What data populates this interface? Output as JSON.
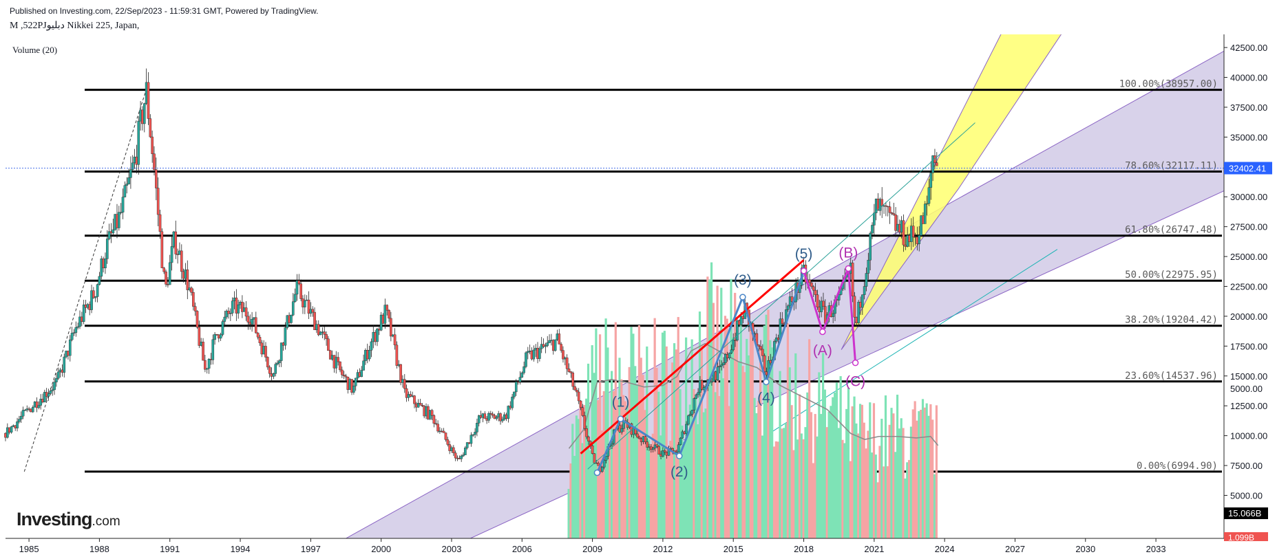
{
  "header": {
    "published": "Published on Investing.com, 22/Sep/2023 - 11:59:31 GMT, Powered by TradingView.",
    "symbol_line": "M ,522PJدبليو Nikkei 225, Japan,",
    "volume_label": "Volume (20)"
  },
  "logo": {
    "brand": "Investing",
    "domain": ".com"
  },
  "colors": {
    "fib_line": "#000000",
    "up_candle": "#26a69a",
    "down_candle": "#ef5350",
    "channel_fill": "#cbc3e3",
    "channel_border": "#8a63c4",
    "yellow_channel": "#ffff70",
    "impulse_wave": "#4a86c8",
    "corrective_wave": "#cc33cc",
    "trend_line": "#ff0000",
    "price_tag": "#2962ff",
    "volume_up": "#7ee3b6",
    "volume_down": "#f6a4a4",
    "volume_ma": "#8c8c8c"
  },
  "chart_data": {
    "type": "candlestick",
    "title": "Nikkei 225, Japan",
    "interval": "M",
    "x_axis": {
      "ticks": [
        "1985",
        "1988",
        "1991",
        "1994",
        "1997",
        "2000",
        "2003",
        "2006",
        "2009",
        "2012",
        "2015",
        "2018",
        "2021",
        "2024",
        "2027",
        "2030",
        "2033"
      ],
      "range": [
        1984.0,
        2035.9
      ]
    },
    "y_axis": {
      "ticks": [
        "42500.00",
        "40000.00",
        "37500.00",
        "35000.00",
        "32500.00",
        "30000.00",
        "27500.00",
        "25000.00",
        "22500.00",
        "20000.00",
        "17500.00",
        "15000.00",
        "12500.00",
        "10000.00",
        "7500.00",
        "5000.00"
      ],
      "range": [
        1400,
        43600
      ]
    },
    "last_price": "32402.41",
    "fib_levels": [
      {
        "pct": "100.00%",
        "value": 38957.0,
        "label": "100.00%(38957.00)"
      },
      {
        "pct": "78.60%",
        "value": 32117.11,
        "label": "78.60%(32117.11)"
      },
      {
        "pct": "61.80%",
        "value": 26747.48,
        "label": "61.80%(26747.48)"
      },
      {
        "pct": "50.00%",
        "value": 22975.95,
        "label": "50.00%(22975.95)"
      },
      {
        "pct": "38.20%",
        "value": 19204.42,
        "label": "38.20%(19204.42)"
      },
      {
        "pct": "23.60%",
        "value": 14537.96,
        "label": "23.60%(14537.96)"
      },
      {
        "pct": "0.00%",
        "value": 6994.9,
        "label": "0.00%(6994.90)"
      }
    ],
    "price_path": [
      [
        1984.0,
        10200
      ],
      [
        1985.2,
        12600
      ],
      [
        1986.2,
        14500
      ],
      [
        1987.0,
        19000
      ],
      [
        1987.8,
        22000
      ],
      [
        1988.3,
        25800
      ],
      [
        1988.9,
        28500
      ],
      [
        1989.5,
        33000
      ],
      [
        1989.99,
        38900
      ],
      [
        1990.3,
        33000
      ],
      [
        1990.8,
        22000
      ],
      [
        1991.2,
        26500
      ],
      [
        1991.8,
        22500
      ],
      [
        1992.5,
        15500
      ],
      [
        1993.0,
        18500
      ],
      [
        1993.7,
        20800
      ],
      [
        1994.4,
        20200
      ],
      [
        1995.4,
        15000
      ],
      [
        1996.4,
        22300
      ],
      [
        1997.2,
        19500
      ],
      [
        1998.2,
        15500
      ],
      [
        1998.8,
        13800
      ],
      [
        1999.5,
        17500
      ],
      [
        2000.2,
        20400
      ],
      [
        2001.0,
        13500
      ],
      [
        2002.2,
        11500
      ],
      [
        2003.3,
        7800
      ],
      [
        2004.2,
        11500
      ],
      [
        2005.3,
        11600
      ],
      [
        2006.2,
        16500
      ],
      [
        2007.5,
        18000
      ],
      [
        2008.3,
        13500
      ],
      [
        2009.0,
        8200
      ],
      [
        2009.3,
        7100
      ],
      [
        2010.0,
        10500
      ],
      [
        2010.4,
        11000
      ],
      [
        2011.2,
        9500
      ],
      [
        2012.0,
        8500
      ],
      [
        2012.6,
        8700
      ],
      [
        2013.5,
        14000
      ],
      [
        2014.5,
        15500
      ],
      [
        2015.5,
        20600
      ],
      [
        2016.4,
        15200
      ],
      [
        2017.0,
        19300
      ],
      [
        2018.0,
        23500
      ],
      [
        2018.9,
        20000
      ],
      [
        2019.5,
        21200
      ],
      [
        2020.0,
        23700
      ],
      [
        2020.2,
        18800
      ],
      [
        2020.5,
        22500
      ],
      [
        2021.1,
        29200
      ],
      [
        2021.8,
        27800
      ],
      [
        2022.4,
        26500
      ],
      [
        2022.9,
        27000
      ],
      [
        2023.3,
        29500
      ],
      [
        2023.5,
        33500
      ],
      [
        2023.72,
        32402
      ]
    ],
    "volume_axis": {
      "tick": "5000.00",
      "last_volume": "15.066B",
      "last_volume_secondary": "1.099B"
    },
    "volume_start": 2008.0,
    "volume_end": 2023.72,
    "volume_ma": [
      [
        2008.0,
        3000
      ],
      [
        2008.6,
        3600
      ],
      [
        2009.2,
        5200
      ],
      [
        2009.8,
        5300
      ],
      [
        2010.5,
        5200
      ],
      [
        2011.2,
        5050
      ],
      [
        2012.0,
        5100
      ],
      [
        2012.6,
        5400
      ],
      [
        2013.2,
        6250
      ],
      [
        2013.8,
        6500
      ],
      [
        2014.5,
        6200
      ],
      [
        2015.2,
        5900
      ],
      [
        2016.0,
        5700
      ],
      [
        2017.0,
        5100
      ],
      [
        2018.0,
        4700
      ],
      [
        2019.0,
        4300
      ],
      [
        2020.0,
        3500
      ],
      [
        2020.6,
        3300
      ],
      [
        2021.2,
        3400
      ],
      [
        2022.0,
        3400
      ],
      [
        2022.8,
        3350
      ],
      [
        2023.4,
        3400
      ],
      [
        2023.72,
        3100
      ]
    ],
    "trend_channel": {
      "line1": [
        [
          1998.5,
          1400
        ],
        [
          2035.9,
          42200
        ]
      ],
      "line2": [
        [
          2003.8,
          1400
        ],
        [
          2035.9,
          30500
        ]
      ],
      "inner_line": [
        [
          2014.0,
          7000
        ],
        [
          2028.8,
          25600
        ]
      ]
    },
    "yellow_channel": {
      "left": [
        [
          2019.6,
          17200
        ],
        [
          2026.5,
          44000
        ]
      ],
      "right": [
        [
          2024.6,
          30700
        ],
        [
          2029.1,
          44000
        ]
      ]
    },
    "red_trend_line": [
      [
        2008.5,
        8500
      ],
      [
        2018.0,
        24700
      ]
    ],
    "thin_trend_line": [
      [
        2008.8,
        7200
      ],
      [
        2025.3,
        36200
      ]
    ],
    "dashed_line": [
      [
        1984.8,
        6990
      ],
      [
        1989.99,
        38950
      ]
    ],
    "impulse_waves": {
      "points": [
        [
          2009.2,
          6900
        ],
        [
          2010.2,
          11400
        ],
        [
          2012.7,
          8300
        ],
        [
          2015.4,
          21600
        ],
        [
          2016.4,
          14500
        ],
        [
          2018.0,
          23800
        ]
      ],
      "labels": [
        "(1)",
        "(2)",
        "(3)",
        "(4)",
        "(5)"
      ]
    },
    "corrective_waves": {
      "points": [
        [
          2018.0,
          23800
        ],
        [
          2018.8,
          18700
        ],
        [
          2019.9,
          24000
        ],
        [
          2020.2,
          16100
        ]
      ],
      "labels": [
        "(A)",
        "(B)",
        "(C)"
      ]
    }
  }
}
